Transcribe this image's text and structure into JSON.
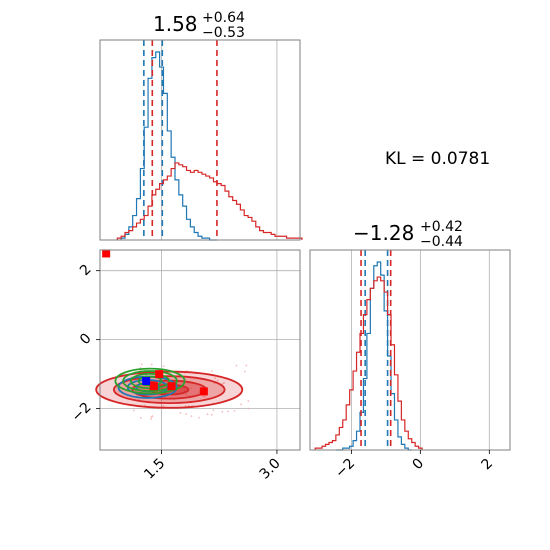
{
  "chart_data": [
    {
      "panel": "marginal-param1",
      "type": "histogram",
      "title": {
        "median": "1.58",
        "plus": "+0.64",
        "minus": "−0.53"
      },
      "xlim": [
        0.7,
        3.3
      ],
      "grid": true,
      "series": [
        {
          "color": "#1f77b4",
          "bin_centers": [
            1.0,
            1.05,
            1.1,
            1.15,
            1.2,
            1.25,
            1.3,
            1.35,
            1.4,
            1.45,
            1.5,
            1.55,
            1.6,
            1.65,
            1.7,
            1.75,
            1.8,
            1.85,
            1.9,
            1.95,
            2.0,
            2.05,
            2.1,
            2.15,
            2.2
          ],
          "heights": [
            0.01,
            0.03,
            0.07,
            0.13,
            0.22,
            0.38,
            0.6,
            0.86,
            0.97,
            1.0,
            0.92,
            0.78,
            0.58,
            0.44,
            0.32,
            0.24,
            0.18,
            0.11,
            0.07,
            0.04,
            0.02,
            0.01,
            0.01,
            0,
            0
          ],
          "quantiles": [
            1.27,
            1.51
          ]
        },
        {
          "color": "#d62728",
          "bin_centers": [
            0.95,
            1.0,
            1.05,
            1.1,
            1.15,
            1.2,
            1.25,
            1.3,
            1.35,
            1.4,
            1.45,
            1.5,
            1.55,
            1.6,
            1.65,
            1.7,
            1.75,
            1.8,
            1.85,
            1.9,
            1.95,
            2.0,
            2.05,
            2.1,
            2.15,
            2.2,
            2.25,
            2.3,
            2.35,
            2.4,
            2.45,
            2.5,
            2.55,
            2.6,
            2.65,
            2.7,
            2.75,
            2.8,
            2.85,
            2.9,
            2.95,
            3.0,
            3.05,
            3.1,
            3.15,
            3.2,
            3.25,
            3.3
          ],
          "heights": [
            0.01,
            0.02,
            0.04,
            0.05,
            0.07,
            0.09,
            0.11,
            0.13,
            0.18,
            0.24,
            0.27,
            0.3,
            0.32,
            0.34,
            0.38,
            0.41,
            0.4,
            0.39,
            0.37,
            0.36,
            0.37,
            0.36,
            0.35,
            0.34,
            0.33,
            0.31,
            0.3,
            0.29,
            0.26,
            0.23,
            0.21,
            0.19,
            0.16,
            0.13,
            0.12,
            0.1,
            0.07,
            0.05,
            0.04,
            0.04,
            0.03,
            0.02,
            0.02,
            0.02,
            0.01,
            0.01,
            0.01,
            0.01
          ],
          "quantiles": [
            1.38,
            2.22
          ]
        }
      ]
    },
    {
      "panel": "joint-param1-param2",
      "type": "contour",
      "xlim": [
        0.7,
        3.3
      ],
      "ylim": [
        -3.2,
        2.6
      ],
      "xticks": [
        "1.5",
        "3.0"
      ],
      "yticks": [
        "−2",
        "0",
        "2"
      ],
      "grid": true,
      "series": [
        {
          "color": "#d62728",
          "center": [
            1.6,
            -1.45
          ],
          "level_radii": [
            [
              0.95,
              1.05
            ],
            [
              0.72,
              0.78
            ],
            [
              0.48,
              0.52
            ],
            [
              0.25,
              0.28
            ]
          ],
          "fill": true
        },
        {
          "color": "#1f77b4",
          "center": [
            1.32,
            -1.38
          ],
          "level_radii": [
            [
              0.38,
              0.62
            ],
            [
              0.26,
              0.42
            ],
            [
              0.15,
              0.24
            ]
          ],
          "fill": false
        },
        {
          "color": "#2ca02c",
          "center": [
            1.35,
            -1.2
          ],
          "level_radii": [
            [
              0.45,
              0.72
            ],
            [
              0.35,
              0.58
            ],
            [
              0.25,
              0.42
            ],
            [
              0.15,
              0.26
            ]
          ],
          "fill": false
        }
      ],
      "markers": [
        {
          "color": "#ff0000",
          "x": 1.47,
          "y": -1.0
        },
        {
          "color": "#ff0000",
          "x": 1.4,
          "y": -1.35
        },
        {
          "color": "#ff0000",
          "x": 1.63,
          "y": -1.35
        },
        {
          "color": "#ff0000",
          "x": 2.05,
          "y": -1.5
        },
        {
          "color": "#ff0000",
          "x": 0.78,
          "y": 2.5
        },
        {
          "color": "#0000ff",
          "x": 1.3,
          "y": -1.2
        }
      ]
    },
    {
      "panel": "marginal-param2",
      "type": "histogram",
      "title": {
        "median": "−1.28",
        "plus": "+0.42",
        "minus": "−0.44"
      },
      "xlim": [
        -3.2,
        2.6
      ],
      "xticks": [
        "−2",
        "0",
        "2"
      ],
      "grid": true,
      "series": [
        {
          "color": "#1f77b4",
          "bin_centers": [
            -2.4,
            -2.3,
            -2.2,
            -2.1,
            -2.0,
            -1.9,
            -1.8,
            -1.7,
            -1.6,
            -1.5,
            -1.4,
            -1.3,
            -1.2,
            -1.1,
            -1.0,
            -0.9,
            -0.8,
            -0.7,
            -0.6,
            -0.5,
            -0.4,
            -0.3
          ],
          "heights": [
            0,
            0,
            0.01,
            0.01,
            0.02,
            0.05,
            0.1,
            0.2,
            0.38,
            0.62,
            0.86,
            0.98,
            1.0,
            0.93,
            0.74,
            0.5,
            0.3,
            0.16,
            0.07,
            0.03,
            0.01,
            0
          ],
          "quantiles": [
            -1.6,
            -0.95
          ]
        },
        {
          "color": "#d62728",
          "bin_centers": [
            -3.0,
            -2.9,
            -2.8,
            -2.7,
            -2.6,
            -2.5,
            -2.4,
            -2.3,
            -2.2,
            -2.1,
            -2.0,
            -1.9,
            -1.8,
            -1.7,
            -1.6,
            -1.5,
            -1.4,
            -1.3,
            -1.2,
            -1.1,
            -1.0,
            -0.9,
            -0.8,
            -0.7,
            -0.6,
            -0.5,
            -0.4,
            -0.3,
            -0.2,
            -0.1,
            0.0
          ],
          "heights": [
            0.01,
            0.01,
            0.02,
            0.03,
            0.04,
            0.05,
            0.08,
            0.12,
            0.16,
            0.24,
            0.32,
            0.42,
            0.52,
            0.62,
            0.72,
            0.8,
            0.86,
            0.9,
            0.92,
            0.9,
            0.84,
            0.72,
            0.56,
            0.4,
            0.26,
            0.16,
            0.1,
            0.06,
            0.04,
            0.02,
            0.01
          ],
          "quantiles": [
            -1.72,
            -0.86
          ]
        }
      ]
    }
  ],
  "annotation": {
    "kl_text": "KL = 0.0781"
  }
}
